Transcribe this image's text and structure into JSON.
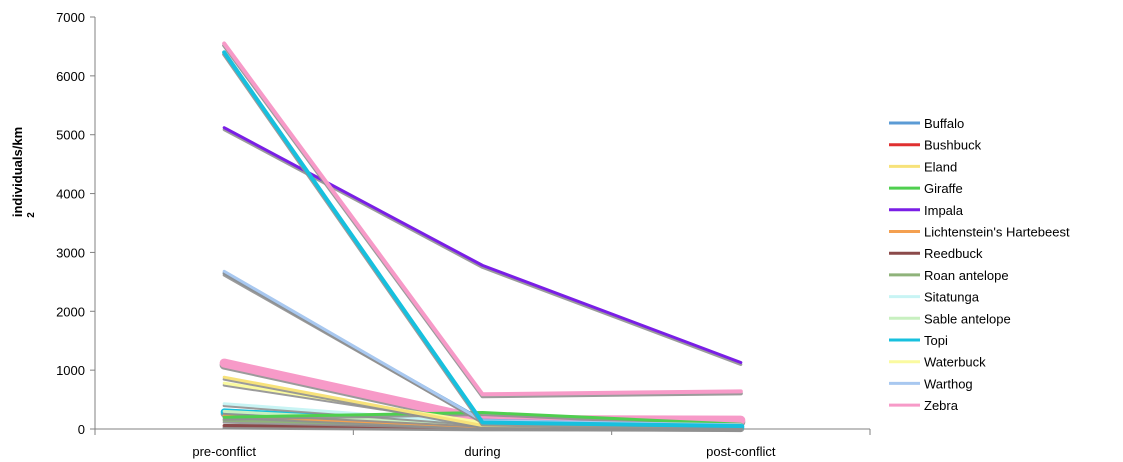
{
  "chart_data": {
    "type": "line",
    "categories": [
      "pre-conflict",
      "during",
      "post-conflict"
    ],
    "ylabel": "individuals/km",
    "ylabel_superscript": "2",
    "ylim": [
      0,
      7000
    ],
    "yticks": [
      0,
      1000,
      2000,
      3000,
      4000,
      5000,
      6000,
      7000
    ],
    "grid": false,
    "legend_position": "right",
    "series": [
      {
        "name": "Buffalo",
        "color": "#5b9bd5",
        "values": [
          2650,
          150,
          60
        ],
        "width": 3
      },
      {
        "name": "Bushbuck",
        "color": "#e03030",
        "values": [
          50,
          20,
          10
        ],
        "width": 3
      },
      {
        "name": "Eland",
        "color": "#f7e27a",
        "values": [
          880,
          60,
          40
        ],
        "width": 3
      },
      {
        "name": "Giraffe",
        "color": "#4fcf4f",
        "values": [
          200,
          280,
          80
        ],
        "width": 3
      },
      {
        "name": "Impala",
        "color": "#7a1ee6",
        "values": [
          5120,
          2780,
          1130
        ],
        "width": 3
      },
      {
        "name": "Lichtenstein's Hartebeest",
        "color": "#f4a050",
        "values": [
          230,
          40,
          20
        ],
        "width": 3
      },
      {
        "name": "Reedbuck",
        "color": "#8b4a4a",
        "values": [
          60,
          30,
          15
        ],
        "width": 3
      },
      {
        "name": "Roan antelope",
        "color": "#8fb37a",
        "values": [
          150,
          50,
          30
        ],
        "width": 3
      },
      {
        "name": "Sitatunga",
        "color": "#c8f4f4",
        "values": [
          430,
          100,
          60
        ],
        "width": 3
      },
      {
        "name": "Sable antelope",
        "color": "#c8f0c0",
        "values": [
          300,
          80,
          50
        ],
        "width": 3
      },
      {
        "name": "Topi",
        "color": "#17c0de",
        "values": [
          6400,
          110,
          50
        ],
        "width": 4
      },
      {
        "name": "Waterbuck",
        "color": "#fafaa0",
        "values": [
          780,
          110,
          70
        ],
        "width": 3
      },
      {
        "name": "Warthog",
        "color": "#a8c8f0",
        "values": [
          2680,
          140,
          70
        ],
        "width": 3
      },
      {
        "name": "Zebra",
        "color": "#f79ac8",
        "values": [
          6550,
          590,
          640
        ],
        "width": 4
      }
    ],
    "extra_lines": [
      {
        "color": "#f79ac8",
        "values": [
          1120,
          160,
          150
        ],
        "width": 9
      },
      {
        "color": "#17c0de",
        "values": [
          290,
          70,
          40
        ],
        "width": 7
      }
    ]
  }
}
